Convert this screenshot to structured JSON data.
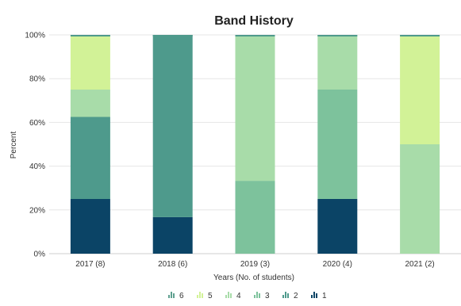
{
  "chart_data": {
    "type": "bar",
    "stacked": true,
    "percent_stacked": true,
    "title": "Band History",
    "xlabel": "Years (No. of students)",
    "ylabel": "Percent",
    "ylim": [
      0,
      100
    ],
    "yticks": [
      "0%",
      "20%",
      "40%",
      "60%",
      "80%",
      "100%"
    ],
    "grid": true,
    "legend_position": "bottom",
    "categories": [
      "2017 (8)",
      "2018 (6)",
      "2019 (3)",
      "2020 (4)",
      "2021 (2)"
    ],
    "series": [
      {
        "name": "1",
        "color": "#0b4466",
        "values": [
          25,
          16.7,
          0,
          25,
          0
        ]
      },
      {
        "name": "2",
        "color": "#4e9a8c",
        "values": [
          37.5,
          83.3,
          0,
          0,
          0
        ]
      },
      {
        "name": "3",
        "color": "#7dc29c",
        "values": [
          0,
          0,
          33.3,
          50,
          0
        ]
      },
      {
        "name": "4",
        "color": "#a8dca9",
        "values": [
          12.5,
          0,
          66.7,
          25,
          50
        ]
      },
      {
        "name": "5",
        "color": "#d2f297",
        "values": [
          25,
          0,
          0,
          0,
          50
        ]
      },
      {
        "name": "6",
        "color": "#5fa090",
        "values": [
          0,
          0,
          0,
          0,
          0
        ]
      }
    ],
    "legend_order": [
      "6",
      "5",
      "4",
      "3",
      "2",
      "1"
    ]
  }
}
